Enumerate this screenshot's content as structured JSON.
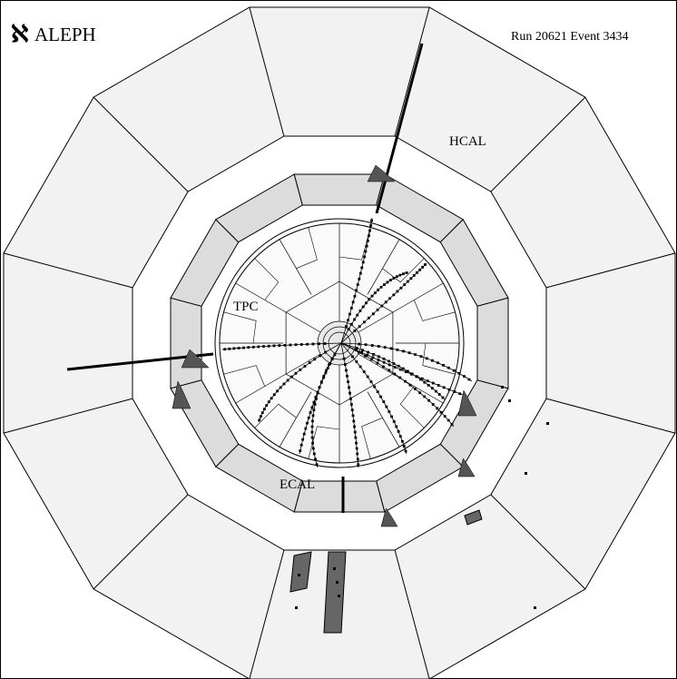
{
  "header": {
    "logo": "ℵ",
    "title": "ALEPH",
    "run_info": "Run 20621 Event 3434"
  },
  "labels": {
    "hcal": "HCAL",
    "tpc": "TPC",
    "ecal": "ECAL"
  }
}
